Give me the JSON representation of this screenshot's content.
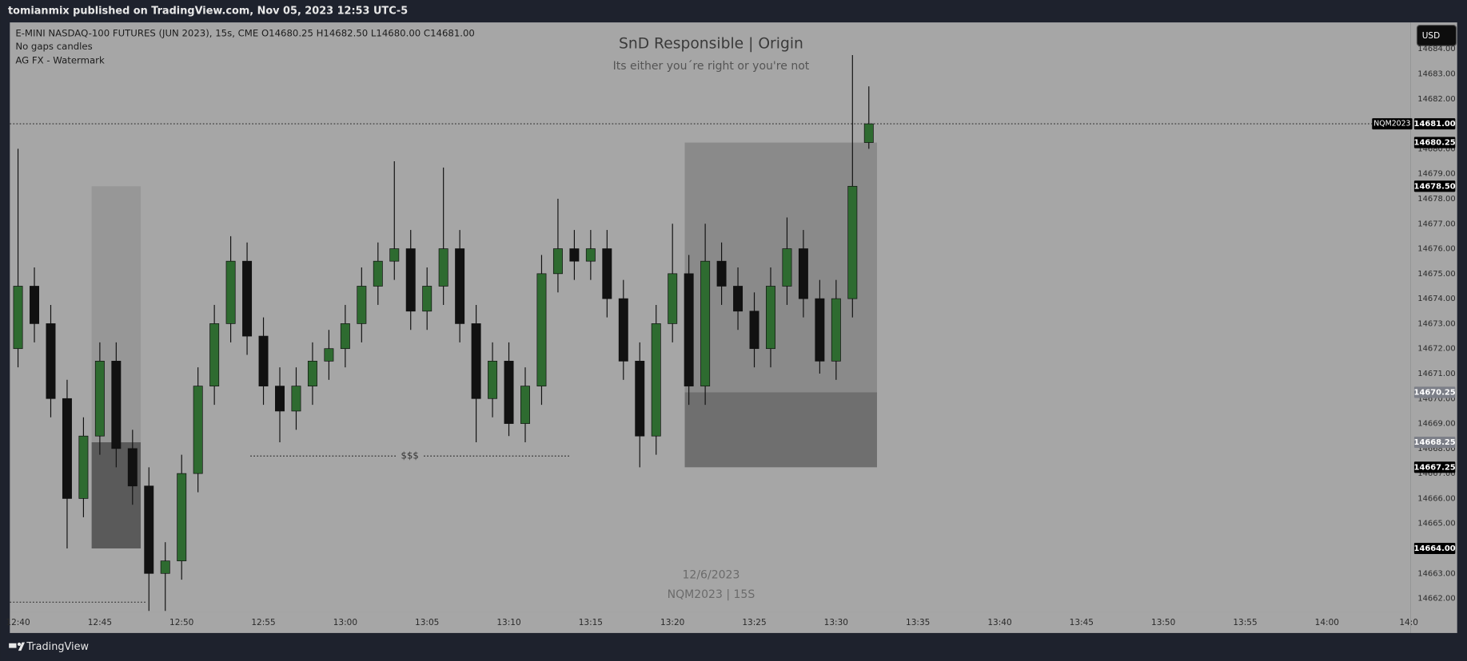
{
  "header_text": "tomianmix published on TradingView.com, Nov 05, 2023 12:53 UTC-5",
  "legend": [
    "E-MINI NASDAQ-100 FUTURES (JUN 2023), 15s, CME  O14680.25  H14682.50  L14680.00  C14681.00",
    "No gaps candles",
    "AG FX - Watermark"
  ],
  "currency": "USD",
  "watermark": [
    "12/6/2023",
    "NQM2023 | 15S"
  ],
  "footer": "TradingView",
  "chart_data": {
    "type": "candlestick",
    "title": "SnD Responsible | Origin",
    "subtitle": "Its either you´re right or you're not",
    "up_color": "#2e6b30",
    "down_color": "#111111",
    "wick_color": "#111111",
    "grid": false,
    "x": [
      0,
      1,
      2,
      3,
      4,
      5,
      6,
      7,
      8,
      9,
      10,
      11,
      12,
      13,
      14,
      15,
      16,
      17,
      18,
      19,
      20,
      21,
      22,
      23,
      24,
      25,
      26,
      27,
      28,
      29,
      30,
      31,
      32,
      33,
      34,
      35,
      36,
      37,
      38,
      39,
      40,
      41,
      42,
      43,
      44,
      45,
      46,
      47,
      48,
      49,
      50,
      51,
      52
    ],
    "open": [
      14672,
      14674.5,
      14673,
      14670,
      14666,
      14668.5,
      14671.5,
      14668,
      14666.5,
      14663,
      14663.5,
      14667,
      14670.5,
      14673,
      14675.5,
      14672.5,
      14670.5,
      14669.5,
      14670.5,
      14671.5,
      14672,
      14673,
      14674.5,
      14675.5,
      14676,
      14673.5,
      14674.5,
      14676,
      14673,
      14670,
      14671.5,
      14669,
      14670.5,
      14675,
      14676,
      14675.5,
      14676,
      14674,
      14671.5,
      14668.5,
      14673,
      14675,
      14670.5,
      14675.5,
      14674.5,
      14673.5,
      14672,
      14674.5,
      14676,
      14674,
      14671.5,
      14674,
      14680.25
    ],
    "high": [
      14680,
      14675.25,
      14673.75,
      14670.75,
      14669.25,
      14672.25,
      14672.25,
      14668.75,
      14667.25,
      14664.25,
      14667.75,
      14671.25,
      14673.75,
      14676.5,
      14676.25,
      14673.25,
      14671.25,
      14671.25,
      14672.25,
      14672.75,
      14673.75,
      14675.25,
      14676.25,
      14679.5,
      14676.75,
      14675.25,
      14679.25,
      14676.75,
      14673.75,
      14672.25,
      14672.25,
      14671.25,
      14675.75,
      14678,
      14676.75,
      14676.75,
      14676.75,
      14674.75,
      14672.25,
      14673.75,
      14677,
      14675.75,
      14677,
      14676.25,
      14675.25,
      14674.25,
      14675.25,
      14677.25,
      14676.75,
      14674.75,
      14674.75,
      14683.75,
      14682.5
    ],
    "low": [
      14671.25,
      14672.25,
      14669.25,
      14664,
      14665.25,
      14667.75,
      14667.25,
      14665.75,
      14661.5,
      14661.5,
      14662.75,
      14666.25,
      14669.75,
      14672.25,
      14671.75,
      14669.75,
      14668.25,
      14668.75,
      14669.75,
      14670.75,
      14671.25,
      14672.25,
      14673.75,
      14674.75,
      14672.75,
      14672.75,
      14673.75,
      14672.25,
      14668.25,
      14669.25,
      14668.5,
      14668.25,
      14669.75,
      14674.25,
      14674.75,
      14674.75,
      14673.25,
      14670.75,
      14667.25,
      14667.75,
      14672.25,
      14669.75,
      14669.75,
      14673.75,
      14672.75,
      14671.25,
      14671.25,
      14673.75,
      14673.25,
      14671,
      14670.75,
      14673.25,
      14680
    ],
    "close": [
      14674.5,
      14673,
      14670,
      14666,
      14668.5,
      14671.5,
      14668,
      14666.5,
      14663,
      14663.5,
      14667,
      14670.5,
      14673,
      14675.5,
      14672.5,
      14670.5,
      14669.5,
      14670.5,
      14671.5,
      14672,
      14673,
      14674.5,
      14675.5,
      14676,
      14673.5,
      14674.5,
      14676,
      14673,
      14670,
      14671.5,
      14669,
      14670.5,
      14675,
      14676,
      14675.5,
      14676,
      14674,
      14671.5,
      14668.5,
      14673,
      14675,
      14670.5,
      14675.5,
      14674.5,
      14673.5,
      14672,
      14674.5,
      14676,
      14674,
      14671.5,
      14674,
      14678.5,
      14681
    ],
    "xlim": [
      -0.5,
      85.1
    ],
    "xticks": [
      {
        "value": 0,
        "label": "12:40"
      },
      {
        "value": 5,
        "label": "12:45"
      },
      {
        "value": 10,
        "label": "12:50"
      },
      {
        "value": 15,
        "label": "12:55"
      },
      {
        "value": 20,
        "label": "13:00"
      },
      {
        "value": 25,
        "label": "13:05"
      },
      {
        "value": 30,
        "label": "13:10"
      },
      {
        "value": 35,
        "label": "13:15"
      },
      {
        "value": 40,
        "label": "13:20"
      },
      {
        "value": 45,
        "label": "13:25"
      },
      {
        "value": 50,
        "label": "13:30"
      },
      {
        "value": 55,
        "label": "13:35"
      },
      {
        "value": 60,
        "label": "13:40"
      },
      {
        "value": 65,
        "label": "13:45"
      },
      {
        "value": 70,
        "label": "13:50"
      },
      {
        "value": 75,
        "label": "13:55"
      },
      {
        "value": 80,
        "label": "14:00"
      },
      {
        "value": 85,
        "label": "14:0"
      }
    ],
    "ylim": [
      14661.4,
      14685.06
    ],
    "yticks": [
      {
        "value": 14662,
        "label": "14662.00"
      },
      {
        "value": 14663,
        "label": "14663.00"
      },
      {
        "value": 14664,
        "label": "14664.00"
      },
      {
        "value": 14665,
        "label": "14665.00"
      },
      {
        "value": 14666,
        "label": "14666.00"
      },
      {
        "value": 14667,
        "label": "14667.00"
      },
      {
        "value": 14668,
        "label": "14668.00"
      },
      {
        "value": 14669,
        "label": "14669.00"
      },
      {
        "value": 14670,
        "label": "14670.00"
      },
      {
        "value": 14671,
        "label": "14671.00"
      },
      {
        "value": 14672,
        "label": "14672.00"
      },
      {
        "value": 14673,
        "label": "14673.00"
      },
      {
        "value": 14674,
        "label": "14674.00"
      },
      {
        "value": 14675,
        "label": "14675.00"
      },
      {
        "value": 14676,
        "label": "14676.00"
      },
      {
        "value": 14677,
        "label": "14677.00"
      },
      {
        "value": 14678,
        "label": "14678.00"
      },
      {
        "value": 14679,
        "label": "14679.00"
      },
      {
        "value": 14680,
        "label": "14680.00"
      },
      {
        "value": 14681,
        "label": "14681.00"
      },
      {
        "value": 14682,
        "label": "14682.00"
      },
      {
        "value": 14683,
        "label": "14683.00"
      },
      {
        "value": 14684,
        "label": "14684.00"
      }
    ],
    "zones": [
      {
        "x": [
          4.5,
          7.5
        ],
        "y": [
          14668.25,
          14678.5
        ],
        "color": "#979797"
      },
      {
        "x": [
          4.5,
          7.5
        ],
        "y": [
          14664,
          14668.25
        ],
        "color": "#5a5a5a"
      },
      {
        "x": [
          40.75,
          52.5
        ],
        "y": [
          14670.25,
          14680.25
        ],
        "color": "#8a8a8a"
      },
      {
        "x": [
          40.75,
          52.5
        ],
        "y": [
          14667.25,
          14670.25
        ],
        "color": "#6f6f6f"
      }
    ],
    "lines": [
      {
        "x": [
          -0.5,
          85.1
        ],
        "y": 14681
      },
      {
        "x": [
          14.2,
          33.7
        ],
        "y": 14667.7,
        "label": "$$$"
      },
      {
        "x": [
          -0.5,
          7.8
        ],
        "y": 14661.85
      }
    ],
    "price_tags": [
      {
        "value": 14681,
        "label": "14681.00",
        "name": "NQM2023",
        "color": "#000000"
      },
      {
        "value": 14680.25,
        "label": "14680.25",
        "color": "#000000"
      },
      {
        "value": 14678.5,
        "label": "14678.50",
        "color": "#000000"
      },
      {
        "value": 14670.25,
        "label": "14670.25",
        "color": "#7c7f88"
      },
      {
        "value": 14668.25,
        "label": "14668.25",
        "color": "#7c7f88"
      },
      {
        "value": 14667.25,
        "label": "14667.25",
        "color": "#000000"
      },
      {
        "value": 14664,
        "label": "14664.00",
        "color": "#000000"
      }
    ]
  }
}
